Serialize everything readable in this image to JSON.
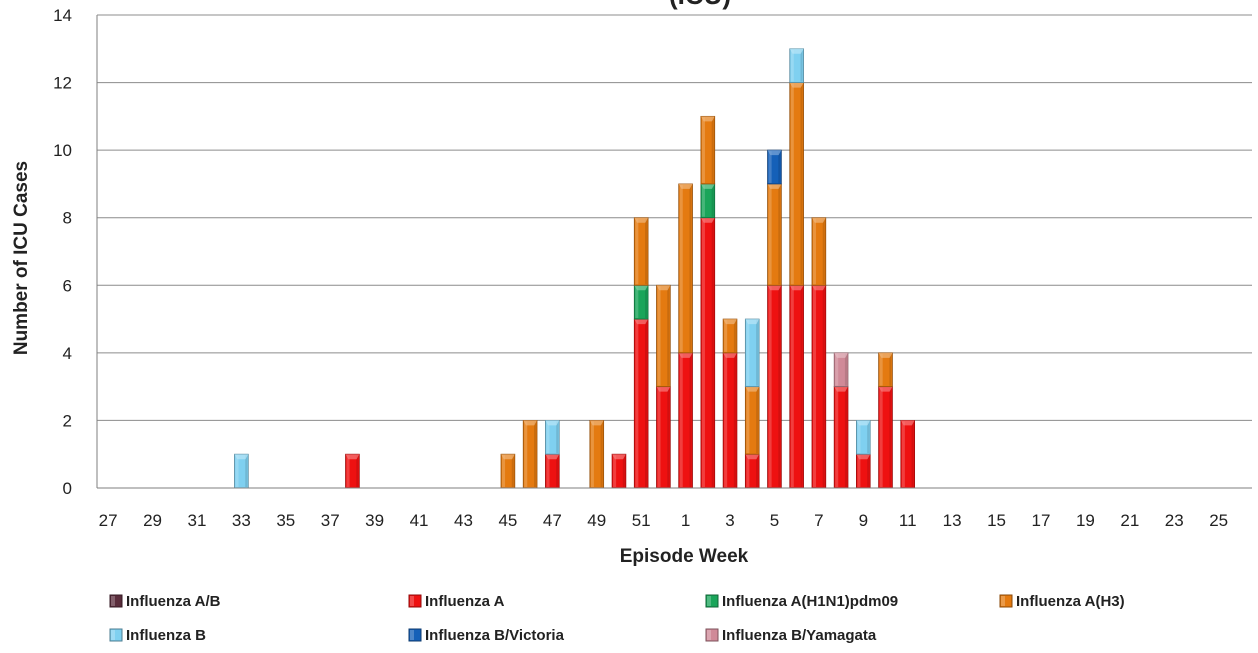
{
  "chart_data": {
    "type": "bar",
    "stacked": true,
    "title_visible_fragment": "(ICU)",
    "xlabel": "Episode Week",
    "ylabel": "Number of ICU Cases",
    "ylim": [
      0,
      14
    ],
    "yticks": [
      0,
      2,
      4,
      6,
      8,
      10,
      12,
      14
    ],
    "grid": "horizontal",
    "legend_position": "bottom",
    "categories": [
      "27",
      "28",
      "29",
      "30",
      "31",
      "32",
      "33",
      "34",
      "35",
      "36",
      "37",
      "38",
      "39",
      "40",
      "41",
      "42",
      "43",
      "44",
      "45",
      "46",
      "47",
      "48",
      "49",
      "50",
      "51",
      "52",
      "1",
      "2",
      "3",
      "4",
      "5",
      "6",
      "7",
      "8",
      "9",
      "10",
      "11",
      "12",
      "13",
      "14",
      "15",
      "16",
      "17",
      "18",
      "19",
      "20",
      "21",
      "22",
      "23",
      "24",
      "25",
      "26"
    ],
    "x_tick_labels": [
      "27",
      "29",
      "31",
      "33",
      "35",
      "37",
      "39",
      "41",
      "43",
      "45",
      "47",
      "49",
      "51",
      "1",
      "3",
      "5",
      "7",
      "9",
      "11",
      "13",
      "15",
      "17",
      "19",
      "21",
      "23",
      "25"
    ],
    "series": [
      {
        "name": "Influenza A/B",
        "color": "#5a2d3c",
        "values": [
          0,
          0,
          0,
          0,
          0,
          0,
          0,
          0,
          0,
          0,
          0,
          0,
          0,
          0,
          0,
          0,
          0,
          0,
          0,
          0,
          0,
          0,
          0,
          0,
          0,
          0,
          0,
          0,
          0,
          0,
          0,
          0,
          0,
          0,
          0,
          0,
          0,
          0,
          0,
          0,
          0,
          0,
          0,
          0,
          0,
          0,
          0,
          0,
          0,
          0,
          0,
          0
        ]
      },
      {
        "name": "Influenza A",
        "color": "#ee1111",
        "values": [
          0,
          0,
          0,
          0,
          0,
          0,
          0,
          0,
          0,
          0,
          0,
          1,
          0,
          0,
          0,
          0,
          0,
          0,
          0,
          0,
          1,
          0,
          0,
          1,
          5,
          3,
          4,
          8,
          4,
          1,
          6,
          6,
          6,
          3,
          1,
          3,
          2,
          0,
          0,
          0,
          0,
          0,
          0,
          0,
          0,
          0,
          0,
          0,
          0,
          0,
          0,
          0
        ]
      },
      {
        "name": "Influenza A(H1N1)pdm09",
        "color": "#1aa55a",
        "values": [
          0,
          0,
          0,
          0,
          0,
          0,
          0,
          0,
          0,
          0,
          0,
          0,
          0,
          0,
          0,
          0,
          0,
          0,
          0,
          0,
          0,
          0,
          0,
          0,
          1,
          0,
          0,
          1,
          0,
          0,
          0,
          0,
          0,
          0,
          0,
          0,
          0,
          0,
          0,
          0,
          0,
          0,
          0,
          0,
          0,
          0,
          0,
          0,
          0,
          0,
          0,
          0
        ]
      },
      {
        "name": "Influenza A(H3)",
        "color": "#e47a10",
        "values": [
          0,
          0,
          0,
          0,
          0,
          0,
          0,
          0,
          0,
          0,
          0,
          0,
          0,
          0,
          0,
          0,
          0,
          0,
          1,
          2,
          0,
          0,
          2,
          0,
          2,
          3,
          5,
          2,
          1,
          2,
          3,
          6,
          2,
          0,
          0,
          1,
          0,
          0,
          0,
          0,
          0,
          0,
          0,
          0,
          0,
          0,
          0,
          0,
          0,
          0,
          0,
          0
        ]
      },
      {
        "name": "Influenza B",
        "color": "#7fd0f0",
        "values": [
          0,
          0,
          0,
          0,
          0,
          0,
          1,
          0,
          0,
          0,
          0,
          0,
          0,
          0,
          0,
          0,
          0,
          0,
          0,
          0,
          1,
          0,
          0,
          0,
          0,
          0,
          0,
          0,
          0,
          2,
          0,
          1,
          0,
          0,
          1,
          0,
          0,
          0,
          0,
          0,
          0,
          0,
          0,
          0,
          0,
          0,
          0,
          0,
          0,
          0,
          0,
          0
        ]
      },
      {
        "name": "Influenza B/Victoria",
        "color": "#1560b8",
        "values": [
          0,
          0,
          0,
          0,
          0,
          0,
          0,
          0,
          0,
          0,
          0,
          0,
          0,
          0,
          0,
          0,
          0,
          0,
          0,
          0,
          0,
          0,
          0,
          0,
          0,
          0,
          0,
          0,
          0,
          0,
          1,
          0,
          0,
          0,
          0,
          0,
          0,
          0,
          0,
          0,
          0,
          0,
          0,
          0,
          0,
          0,
          0,
          0,
          0,
          0,
          0,
          0
        ]
      },
      {
        "name": "Influenza B/Yamagata",
        "color": "#d08a98",
        "values": [
          0,
          0,
          0,
          0,
          0,
          0,
          0,
          0,
          0,
          0,
          0,
          0,
          0,
          0,
          0,
          0,
          0,
          0,
          0,
          0,
          0,
          0,
          0,
          0,
          0,
          0,
          0,
          0,
          0,
          0,
          0,
          0,
          0,
          1,
          0,
          0,
          0,
          0,
          0,
          0,
          0,
          0,
          0,
          0,
          0,
          0,
          0,
          0,
          0,
          0,
          0,
          0
        ]
      }
    ]
  }
}
